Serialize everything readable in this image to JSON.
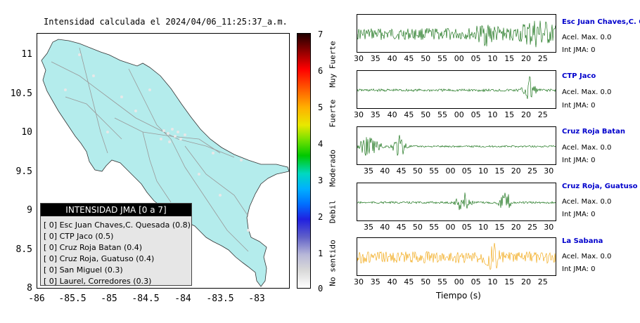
{
  "map": {
    "title": "Intensidad calculada el 2024/04/06_11:25:37_a.m.",
    "y_ticks": [
      "11",
      "10.5",
      "10",
      "9.5",
      "9",
      "8.5",
      "8"
    ],
    "x_ticks": [
      "-86",
      "-85.5",
      "-85",
      "-84.5",
      "-84",
      "-83.5",
      "-83"
    ],
    "land_color": "#b4ecec",
    "legend": {
      "header": "INTENSIDAD JMA [0 a 7]",
      "rows": [
        "[ 0]  Esc Juan Chaves,C. Quesada (0.8)",
        "[ 0]  CTP Jaco (0.5)",
        "[ 0]  Cruz Roja Batan (0.4)",
        "[ 0]  Cruz Roja, Guatuso (0.4)",
        "[ 0]  San Miguel (0.3)",
        "[ 0]  Laurel, Corredores (0.3)"
      ]
    }
  },
  "scale": {
    "ticks": [
      "7",
      "6",
      "5",
      "4",
      "3",
      "2",
      "1",
      "0"
    ],
    "labels": [
      "Muy Fuerte",
      "Fuerte",
      "Moderado",
      "Debil",
      "No sentido"
    ]
  },
  "traces": [
    {
      "station": "Esc Juan Chaves,C. Qu",
      "acel": "Acel. Max. 0.0",
      "int": "Int JMA: 0",
      "color": "#006400",
      "ticks": [
        "30",
        "35",
        "40",
        "45",
        "50",
        "55",
        "00",
        "05",
        "10",
        "15",
        "20",
        "25"
      ]
    },
    {
      "station": "CTP Jaco",
      "acel": "Acel. Max. 0.0",
      "int": "Int JMA: 0",
      "color": "#006400",
      "ticks": [
        "30",
        "35",
        "40",
        "45",
        "50",
        "55",
        "00",
        "05",
        "10",
        "15",
        "20",
        "25"
      ]
    },
    {
      "station": "Cruz Roja Batan",
      "acel": "Acel. Max. 0.0",
      "int": "Int JMA: 0",
      "color": "#006400",
      "ticks": [
        "35",
        "40",
        "45",
        "50",
        "55",
        "00",
        "05",
        "10",
        "15",
        "20",
        "25",
        "30"
      ]
    },
    {
      "station": "Cruz Roja, Guatuso",
      "acel": "Acel. Max. 0.0",
      "int": "Int JMA: 0",
      "color": "#006400",
      "ticks": [
        "35",
        "40",
        "45",
        "50",
        "55",
        "00",
        "05",
        "10",
        "15",
        "20",
        "25",
        "30"
      ]
    },
    {
      "station": "La Sabana",
      "acel": "Acel. Max. 0.0",
      "int": "Int JMA: 0",
      "color": "#f0a000",
      "ticks": [
        "30",
        "35",
        "40",
        "45",
        "50",
        "55",
        "00",
        "05",
        "10",
        "15",
        "20",
        "25"
      ]
    }
  ],
  "time_label": "Tiempo (s)"
}
